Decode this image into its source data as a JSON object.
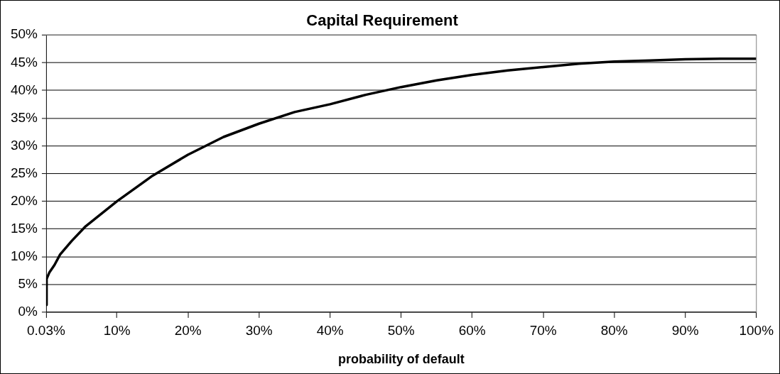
{
  "chart_data": {
    "type": "line",
    "title": "Capital Requirement",
    "xlabel": "probability of default",
    "x": [
      0.03,
      0.1,
      0.5,
      1.2,
      2,
      3.6,
      5.6,
      10,
      15,
      20,
      25,
      30,
      35,
      40,
      45,
      50,
      55,
      60,
      65,
      70,
      75,
      80,
      85,
      90,
      95,
      100
    ],
    "series": [
      {
        "color": "#000000",
        "values": [
          1.3,
          6,
          7.2,
          8.5,
          10.4,
          12.8,
          15.5,
          20,
          24.6,
          28.4,
          31.6,
          34,
          36.1,
          37.5,
          39.2,
          40.6,
          41.8,
          42.8,
          43.6,
          44.2,
          44.8,
          45.2,
          45.4,
          45.6,
          45.7,
          45.7
        ]
      }
    ],
    "xlim": [
      0.03,
      100
    ],
    "xticks": [
      {
        "value": 0.03,
        "label": "0.03%"
      },
      {
        "value": 10,
        "label": "10%"
      },
      {
        "value": 20,
        "label": "20%"
      },
      {
        "value": 30,
        "label": "30%"
      },
      {
        "value": 40,
        "label": "40%"
      },
      {
        "value": 50,
        "label": "50%"
      },
      {
        "value": 60,
        "label": "60%"
      },
      {
        "value": 70,
        "label": "70%"
      },
      {
        "value": 80,
        "label": "80%"
      },
      {
        "value": 90,
        "label": "90%"
      },
      {
        "value": 100,
        "label": "100%"
      }
    ],
    "ylim": [
      0,
      50
    ],
    "yticks": [
      {
        "value": 0,
        "label": "0%"
      },
      {
        "value": 5,
        "label": "5%"
      },
      {
        "value": 10,
        "label": "10%"
      },
      {
        "value": 15,
        "label": "15%"
      },
      {
        "value": 20,
        "label": "20%"
      },
      {
        "value": 25,
        "label": "25%"
      },
      {
        "value": 30,
        "label": "30%"
      },
      {
        "value": 35,
        "label": "35%"
      },
      {
        "value": 40,
        "label": "40%"
      },
      {
        "value": 45,
        "label": "45%"
      },
      {
        "value": 50,
        "label": "50%"
      }
    ],
    "grid": "y",
    "legend": false,
    "marker": "none",
    "line_style": "solid"
  }
}
